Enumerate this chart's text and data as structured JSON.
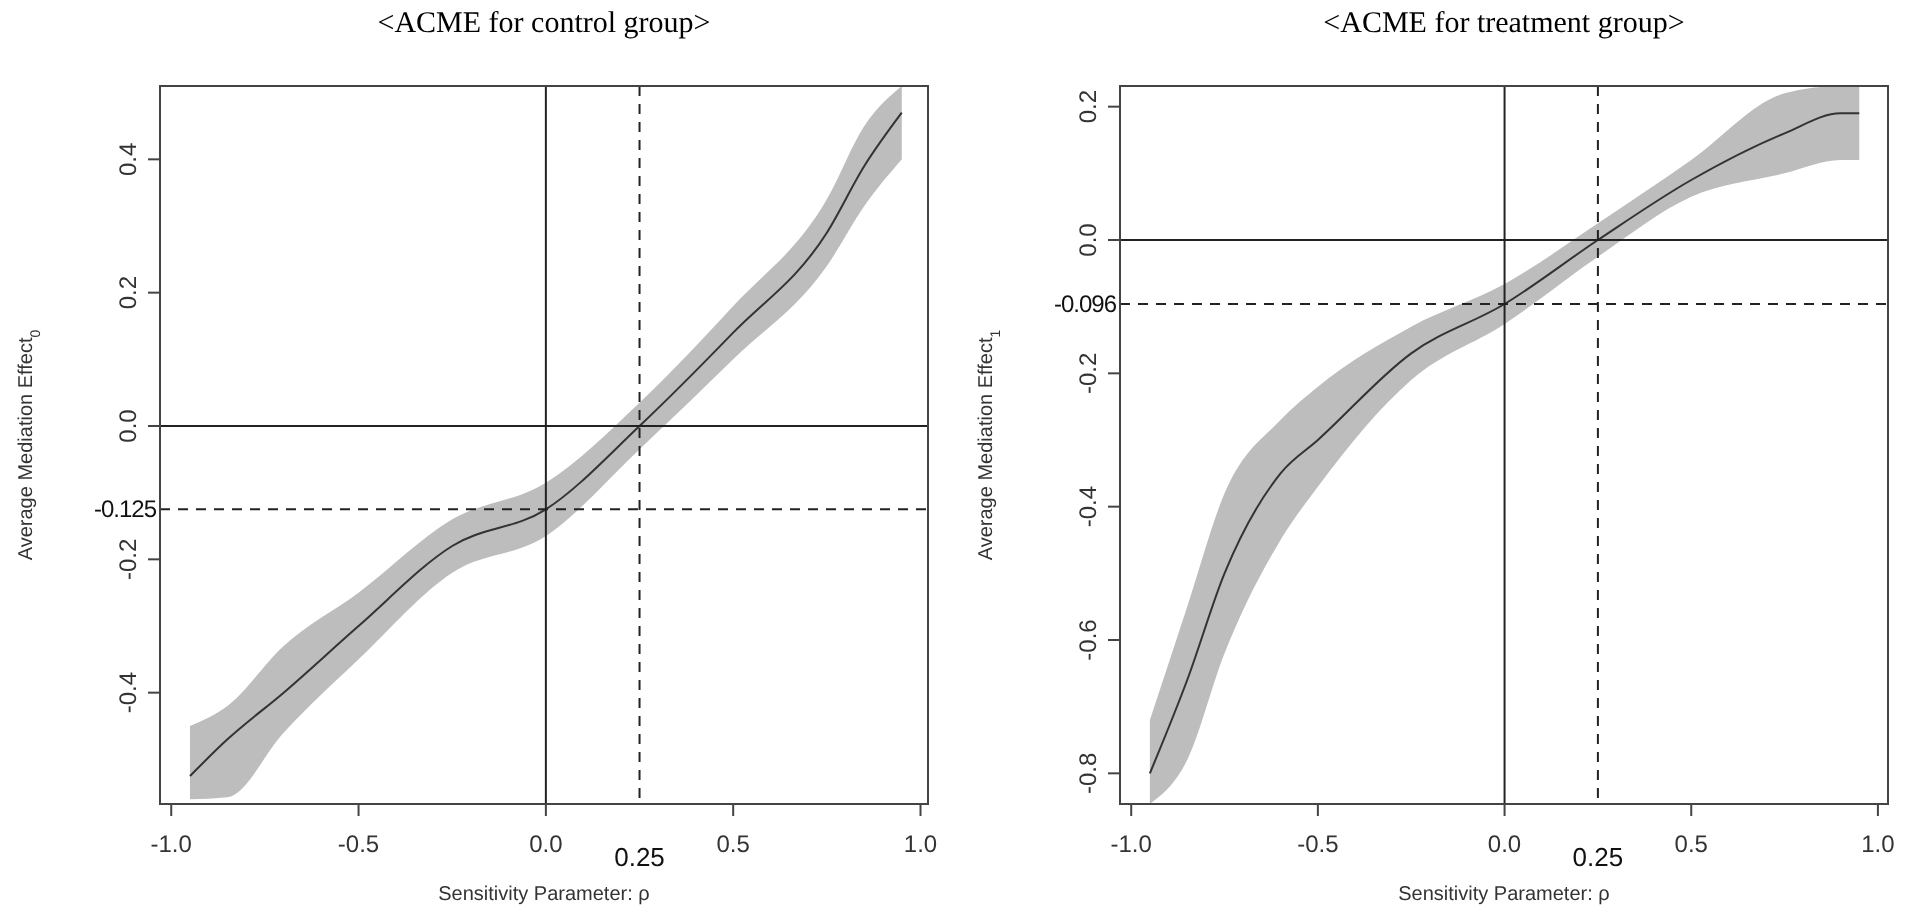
{
  "chart_data": [
    {
      "type": "line",
      "title": "<ACME for control group>",
      "xlabel": "Sensitivity Parameter: ρ",
      "ylabel": "Average Mediation Effect$_{0}$",
      "xlim": [
        -1.03,
        1.02
      ],
      "ylim": [
        -0.567,
        0.51
      ],
      "xticks": [
        {
          "value": -1,
          "label": "-1.0"
        },
        {
          "value": -0.5,
          "label": "-0.5"
        },
        {
          "value": 0,
          "label": "0.0"
        },
        {
          "value": 0.5,
          "label": "0.5"
        },
        {
          "value": 1,
          "label": "1.0"
        }
      ],
      "yticks": [
        {
          "value": -0.4,
          "label": "-0.4"
        },
        {
          "value": -0.2,
          "label": "-0.2"
        },
        {
          "value": 0,
          "label": "0.0"
        },
        {
          "value": 0.2,
          "label": "0.2"
        },
        {
          "value": 0.4,
          "label": "0.4"
        }
      ],
      "grid": false,
      "marker": "none",
      "line_style": "solid",
      "series": [
        {
          "color": "#333333",
          "x": [
            -0.95,
            -0.85,
            -0.7,
            -0.5,
            -0.25,
            0,
            0.25,
            0.5,
            0.75,
            0.85,
            0.95
          ],
          "values": [
            -0.525,
            -0.47,
            -0.4,
            -0.3,
            -0.18,
            -0.125,
            0,
            0.14,
            0.29,
            0.39,
            0.47
          ],
          "lower": [
            -0.56,
            -0.557,
            -0.46,
            -0.35,
            -0.22,
            -0.165,
            -0.035,
            0.1,
            0.24,
            0.33,
            0.4
          ],
          "upper": [
            -0.45,
            -0.42,
            -0.33,
            -0.25,
            -0.14,
            -0.085,
            0.035,
            0.18,
            0.34,
            0.45,
            0.51
          ]
        }
      ],
      "ref_lines": [
        {
          "axis": "y",
          "value": 0,
          "label": null,
          "line_style": "solid"
        },
        {
          "axis": "x",
          "value": 0,
          "label": null,
          "line_style": "solid"
        },
        {
          "axis": "y",
          "value": -0.125,
          "label": "-0.125",
          "line_style": "dashed"
        },
        {
          "axis": "x",
          "value": 0.25,
          "label": "0.25",
          "line_style": "dashed"
        }
      ]
    },
    {
      "type": "line",
      "title": "<ACME for treatment group>",
      "xlabel": "Sensitivity Parameter: ρ",
      "ylabel": "Average Mediation Effect$_{1}$",
      "xlim": [
        -1.03,
        1.027
      ],
      "ylim": [
        -0.846,
        0.231
      ],
      "xticks": [
        {
          "value": -1,
          "label": "-1.0"
        },
        {
          "value": -0.5,
          "label": "-0.5"
        },
        {
          "value": 0,
          "label": "0.0"
        },
        {
          "value": 0.5,
          "label": "0.5"
        },
        {
          "value": 1,
          "label": "1.0"
        }
      ],
      "yticks": [
        {
          "value": -0.8,
          "label": "-0.8"
        },
        {
          "value": -0.6,
          "label": "-0.6"
        },
        {
          "value": -0.4,
          "label": "-0.4"
        },
        {
          "value": -0.2,
          "label": "-0.2"
        },
        {
          "value": 0,
          "label": "0.0"
        },
        {
          "value": 0.2,
          "label": "0.2"
        }
      ],
      "grid": false,
      "marker": "none",
      "line_style": "solid",
      "series": [
        {
          "color": "#333333",
          "x": [
            -0.95,
            -0.85,
            -0.75,
            -0.6,
            -0.5,
            -0.25,
            0,
            0.25,
            0.5,
            0.75,
            0.9,
            0.95
          ],
          "values": [
            -0.8,
            -0.66,
            -0.5,
            -0.35,
            -0.3,
            -0.17,
            -0.096,
            0,
            0.09,
            0.16,
            0.19,
            0.19
          ],
          "lower": [
            -0.846,
            -0.78,
            -0.62,
            -0.45,
            -0.37,
            -0.21,
            -0.126,
            -0.025,
            0.065,
            0.1,
            0.12,
            0.12
          ],
          "upper": [
            -0.72,
            -0.55,
            -0.38,
            -0.27,
            -0.22,
            -0.13,
            -0.066,
            0.025,
            0.12,
            0.22,
            0.231,
            0.231
          ]
        }
      ],
      "ref_lines": [
        {
          "axis": "y",
          "value": 0,
          "label": null,
          "line_style": "solid"
        },
        {
          "axis": "x",
          "value": 0,
          "label": null,
          "line_style": "solid"
        },
        {
          "axis": "y",
          "value": -0.096,
          "label": "-0.096",
          "line_style": "dashed"
        },
        {
          "axis": "x",
          "value": 0.25,
          "label": "0.25",
          "line_style": "dashed"
        }
      ]
    }
  ]
}
